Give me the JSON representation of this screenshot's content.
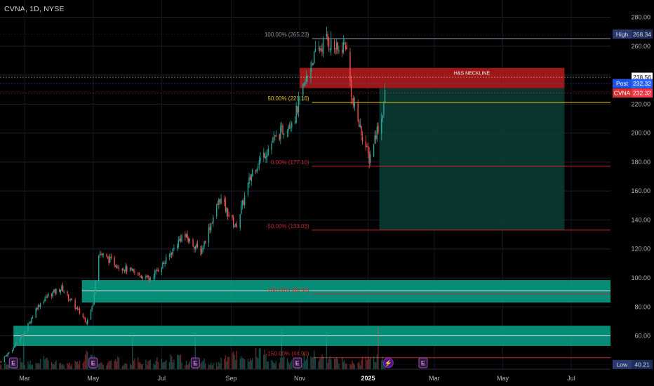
{
  "header": {
    "symbol": "CVNA, 1D, NYSE"
  },
  "chart_data": {
    "type": "candlestick",
    "ylim": [
      37,
      288
    ],
    "y_ticks": [
      60,
      80,
      100,
      120,
      140,
      160,
      180,
      200,
      220,
      240,
      260,
      280
    ],
    "y_tick_labels": [
      "60.00",
      "80.00",
      "100.00",
      "120.00",
      "140.00",
      "160.00",
      "180.00",
      "200.00",
      "220.00",
      "240.00",
      "260.00",
      "280.00"
    ],
    "x_ticks": [
      {
        "date": "2024-03-01",
        "label": "Mar"
      },
      {
        "date": "2024-05-01",
        "label": "May"
      },
      {
        "date": "2024-07-01",
        "label": "Jul"
      },
      {
        "date": "2024-09-01",
        "label": "Sep"
      },
      {
        "date": "2024-11-01",
        "label": "Nov"
      },
      {
        "date": "2025-01-01",
        "label": "2025"
      },
      {
        "date": "2025-03-01",
        "label": "Mar"
      },
      {
        "date": "2025-05-01",
        "label": "May"
      },
      {
        "date": "2025-07-01",
        "label": "Jul"
      }
    ],
    "colors": {
      "up": "#26a69a",
      "down": "#ef5350",
      "zone": "#089981",
      "neckline": "#b71c1c",
      "target": "#0b3b33",
      "fib_top": "#9598a1",
      "fib_50": "#f0c419",
      "fib_red": "#c62828"
    },
    "price_path": [
      [
        "2024-02-08",
        42
      ],
      [
        "2024-02-20",
        52
      ],
      [
        "2024-03-01",
        63
      ],
      [
        "2024-03-12",
        80
      ],
      [
        "2024-03-22",
        88
      ],
      [
        "2024-04-03",
        93
      ],
      [
        "2024-04-15",
        80
      ],
      [
        "2024-04-25",
        70
      ],
      [
        "2024-05-01",
        82
      ],
      [
        "2024-05-05",
        118
      ],
      [
        "2024-05-20",
        110
      ],
      [
        "2024-06-05",
        104
      ],
      [
        "2024-06-20",
        99
      ],
      [
        "2024-07-05",
        112
      ],
      [
        "2024-07-20",
        130
      ],
      [
        "2024-08-05",
        118
      ],
      [
        "2024-08-22",
        155
      ],
      [
        "2024-09-05",
        135
      ],
      [
        "2024-09-20",
        174
      ],
      [
        "2024-10-08",
        194
      ],
      [
        "2024-10-28",
        212
      ],
      [
        "2024-11-05",
        232
      ],
      [
        "2024-11-12",
        250
      ],
      [
        "2024-11-25",
        265
      ],
      [
        "2024-12-05",
        256
      ],
      [
        "2024-12-12",
        262
      ],
      [
        "2024-12-18",
        222
      ],
      [
        "2024-12-27",
        198
      ],
      [
        "2025-01-02",
        182
      ],
      [
        "2025-01-08",
        200
      ],
      [
        "2025-01-13",
        210
      ],
      [
        "2025-01-17",
        232
      ]
    ],
    "volume_path": [
      3,
      5,
      4,
      6,
      4,
      3,
      5,
      8,
      4,
      6,
      3,
      5,
      4,
      6,
      7,
      4,
      5,
      3,
      6,
      8,
      5,
      9,
      4,
      6,
      5,
      7,
      8,
      6,
      5,
      4,
      6,
      7
    ],
    "demand_zones": [
      {
        "from": 83,
        "to": 98.5,
        "start": "2024-04-21"
      },
      {
        "from": 53,
        "to": 67,
        "start": "2024-02-20"
      }
    ],
    "zone_lines": [
      91,
      60
    ],
    "neckline_zone": {
      "label": "H&S NECKLINE",
      "from": 231,
      "to": 245,
      "start": "2024-11-01",
      "end": "2025-06-25"
    },
    "target_box": {
      "from": 133,
      "to": 231,
      "start": "2025-01-11",
      "end": "2025-06-25"
    },
    "fib_levels": [
      {
        "label": "100.00% (265.23)",
        "price": 265.23,
        "color": "fib_top"
      },
      {
        "label": "50.00% (221.16)",
        "price": 221.16,
        "color": "fib_50"
      },
      {
        "label": "0.00% (177.10)",
        "price": 177.1,
        "color": "fib_red"
      },
      {
        "label": "-50.00% (133.03)",
        "price": 133.03,
        "color": "fib_red"
      },
      {
        "label": "-100.00% (88.96)",
        "price": 88.96,
        "color": "fib_red"
      },
      {
        "label": "-150.00% (44.90)",
        "price": 44.9,
        "color": "fib_red"
      }
    ],
    "price_labels": [
      {
        "name": "High",
        "value": "268.34",
        "price": 268.34,
        "bg": "#1e2e5a",
        "fg": "#d1d4dc",
        "tagbg": "#2a3a6e"
      },
      {
        "name": "",
        "value": "238.56",
        "price": 238.56,
        "bg": "#ffffff",
        "fg": "#131722",
        "tagbg": "#ffffff"
      },
      {
        "name": "Post",
        "value": "232.32",
        "price": 234.2,
        "bg": "#2962ff",
        "fg": "#ffffff",
        "tagbg": "#1e53e5"
      },
      {
        "name": "CVNA",
        "value": "232.32",
        "price": 227.7,
        "bg": "#f23645",
        "fg": "#ffffff",
        "tagbg": "#d32f2f"
      },
      {
        "name": "Low",
        "value": "40.21",
        "price": 40.21,
        "bg": "#1e2e5a",
        "fg": "#d1d4dc",
        "tagbg": "#2a3a6e"
      }
    ],
    "events": [
      {
        "date": "2024-02-20",
        "glyph": "E",
        "kind": "earnings"
      },
      {
        "date": "2024-05-01",
        "glyph": "E",
        "kind": "earnings"
      },
      {
        "date": "2024-07-31",
        "glyph": "E",
        "kind": "earnings"
      },
      {
        "date": "2024-10-30",
        "glyph": "E",
        "kind": "earnings"
      },
      {
        "date": "2025-01-19",
        "glyph": "⚡",
        "kind": "flash"
      },
      {
        "date": "2025-02-19",
        "glyph": "E",
        "kind": "earnings"
      }
    ]
  }
}
